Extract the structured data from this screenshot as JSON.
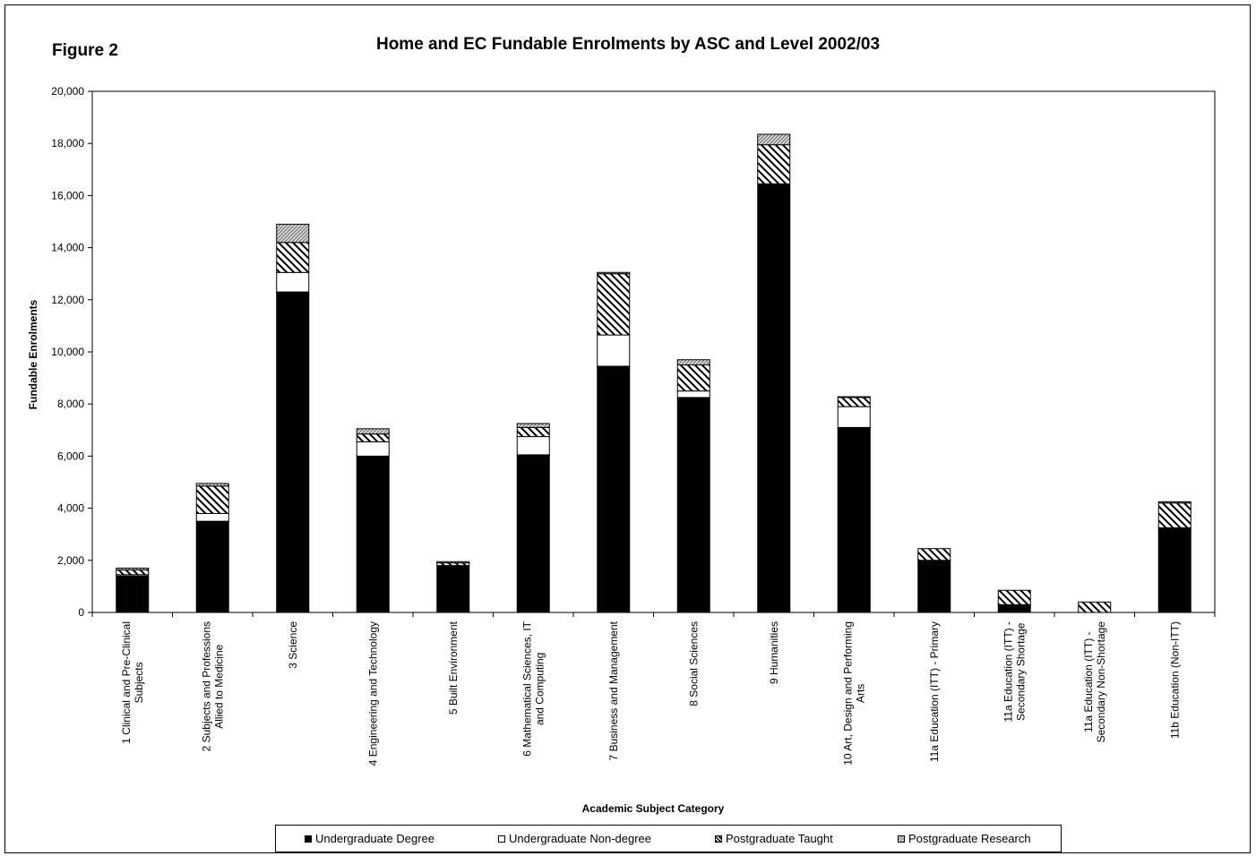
{
  "figure_label": "Figure 2",
  "chart_data": {
    "type": "bar",
    "stacked": true,
    "title": "Home and EC Fundable Enrolments by ASC and Level 2002/03",
    "xlabel": "Academic Subject Category",
    "ylabel": "Fundable Enrolments",
    "ylim": [
      0,
      20000
    ],
    "yticks": [
      0,
      2000,
      4000,
      6000,
      8000,
      10000,
      12000,
      14000,
      16000,
      18000,
      20000
    ],
    "ytick_labels": [
      "0",
      "2,000",
      "4,000",
      "6,000",
      "8,000",
      "10,000",
      "12,000",
      "14,000",
      "16,000",
      "18,000",
      "20,000"
    ],
    "categories": [
      [
        "1  Clinical and Pre-Clinical",
        "Subjects"
      ],
      [
        "2  Subjects and Professions",
        "Allied to Medicine"
      ],
      [
        "3  Science"
      ],
      [
        "4  Engineering and Technology"
      ],
      [
        "5  Built Environment"
      ],
      [
        "6  Mathematical Sciences, IT",
        "and Computing"
      ],
      [
        "7  Business and Management"
      ],
      [
        "8  Social Sciences"
      ],
      [
        "9  Humanities"
      ],
      [
        "10  Art, Design and Performing",
        "Arts"
      ],
      [
        "11a  Education (ITT) - Primary"
      ],
      [
        "11a  Education (ITT) -",
        "Secondary Shortage"
      ],
      [
        "11a  Education (ITT) -",
        "Secondary Non-Shortage"
      ],
      [
        "11b  Education (Non-ITT)"
      ]
    ],
    "series": [
      {
        "name": "Undergraduate Degree",
        "pattern": "solid-black",
        "values": [
          1400,
          3500,
          12300,
          6000,
          1800,
          6050,
          9450,
          8250,
          16450,
          7100,
          2000,
          300,
          0,
          3250
        ]
      },
      {
        "name": "Undergraduate Non-degree",
        "pattern": "white",
        "values": [
          50,
          300,
          750,
          550,
          0,
          700,
          1200,
          250,
          0,
          800,
          0,
          0,
          0,
          0
        ]
      },
      {
        "name": "Postgraduate Taught",
        "pattern": "diagonal-hatch",
        "values": [
          180,
          1050,
          1150,
          300,
          100,
          350,
          2350,
          1000,
          1500,
          350,
          450,
          550,
          400,
          950
        ]
      },
      {
        "name": "Postgraduate Research",
        "pattern": "fine-grey-hatch",
        "values": [
          70,
          100,
          700,
          200,
          50,
          150,
          50,
          200,
          400,
          30,
          0,
          0,
          0,
          50
        ]
      }
    ],
    "legend_position": "bottom",
    "grid": false
  }
}
